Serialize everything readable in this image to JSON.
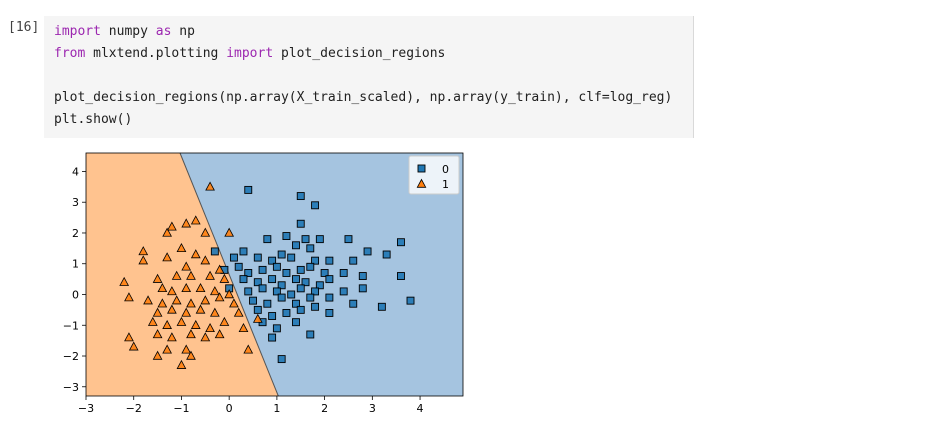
{
  "cell": {
    "prompt": "[16]",
    "code": {
      "line1": {
        "kw1": "import",
        "t1": " numpy ",
        "kw2": "as",
        "t2": " np"
      },
      "line2": {
        "kw1": "from",
        "t1": " mlxtend.plotting ",
        "kw2": "import",
        "t2": " plot_decision_regions"
      },
      "line4": "plot_decision_regions(np.array(X_train_scaled), np.array(y_train), clf=log_reg)",
      "line5": "plt.show()"
    }
  },
  "colors": {
    "region_0": "#a5c4e0",
    "region_1": "#ffc38f",
    "marker_0": "#1f77b4",
    "marker_1": "#ff7f0e",
    "keyword": "#9c27b0"
  },
  "chart_data": {
    "type": "scatter",
    "xlim": [
      -3,
      4.9
    ],
    "ylim": [
      -3.3,
      4.6
    ],
    "x_ticks": [
      -3,
      -2,
      -1,
      0,
      1,
      2,
      3,
      4
    ],
    "y_ticks": [
      -3,
      -2,
      -1,
      0,
      1,
      2,
      3,
      4
    ],
    "x_tick_labels": [
      "−3",
      "−2",
      "−1",
      "0",
      "1",
      "2",
      "3",
      "4"
    ],
    "y_tick_labels": [
      "−3",
      "−2",
      "−1",
      "0",
      "1",
      "2",
      "3",
      "4"
    ],
    "decision_boundary": [
      [
        -1.03,
        4.6
      ],
      [
        1.03,
        -3.3
      ]
    ],
    "legend_placement": "top-right",
    "grid": false,
    "series": [
      {
        "name": "0",
        "marker": "square",
        "points": [
          [
            0.4,
            3.4
          ],
          [
            1.5,
            3.2
          ],
          [
            1.8,
            2.9
          ],
          [
            1.5,
            2.3
          ],
          [
            0.8,
            1.8
          ],
          [
            1.2,
            1.9
          ],
          [
            1.4,
            1.6
          ],
          [
            1.6,
            1.8
          ],
          [
            1.9,
            1.8
          ],
          [
            1.7,
            1.5
          ],
          [
            2.5,
            1.8
          ],
          [
            3.6,
            1.7
          ],
          [
            2.9,
            1.4
          ],
          [
            -0.3,
            1.4
          ],
          [
            0.1,
            1.2
          ],
          [
            0.3,
            1.4
          ],
          [
            0.6,
            1.2
          ],
          [
            0.9,
            1.1
          ],
          [
            1.1,
            1.3
          ],
          [
            1.3,
            1.2
          ],
          [
            1.8,
            1.1
          ],
          [
            2.1,
            1.1
          ],
          [
            2.6,
            1.1
          ],
          [
            3.3,
            1.3
          ],
          [
            -0.1,
            0.8
          ],
          [
            0.2,
            0.9
          ],
          [
            0.4,
            0.7
          ],
          [
            0.7,
            0.8
          ],
          [
            1.0,
            0.9
          ],
          [
            1.2,
            0.7
          ],
          [
            1.5,
            0.8
          ],
          [
            1.7,
            0.9
          ],
          [
            2.0,
            0.7
          ],
          [
            2.4,
            0.7
          ],
          [
            2.8,
            0.6
          ],
          [
            3.6,
            0.6
          ],
          [
            0.3,
            0.5
          ],
          [
            0.6,
            0.4
          ],
          [
            0.9,
            0.5
          ],
          [
            1.1,
            0.3
          ],
          [
            1.4,
            0.5
          ],
          [
            1.6,
            0.4
          ],
          [
            1.9,
            0.3
          ],
          [
            2.1,
            0.5
          ],
          [
            0.0,
            0.2
          ],
          [
            0.4,
            0.1
          ],
          [
            0.7,
            0.2
          ],
          [
            1.0,
            0.1
          ],
          [
            1.3,
            0.0
          ],
          [
            1.5,
            0.2
          ],
          [
            1.8,
            0.1
          ],
          [
            2.4,
            0.1
          ],
          [
            2.8,
            0.2
          ],
          [
            3.8,
            -0.2
          ],
          [
            0.5,
            -0.2
          ],
          [
            0.8,
            -0.3
          ],
          [
            1.1,
            -0.1
          ],
          [
            1.4,
            -0.3
          ],
          [
            1.7,
            -0.1
          ],
          [
            2.1,
            -0.1
          ],
          [
            0.6,
            -0.5
          ],
          [
            0.9,
            -0.7
          ],
          [
            1.2,
            -0.6
          ],
          [
            1.5,
            -0.5
          ],
          [
            1.8,
            -0.4
          ],
          [
            2.1,
            -0.6
          ],
          [
            2.6,
            -0.3
          ],
          [
            3.2,
            -0.4
          ],
          [
            0.7,
            -0.9
          ],
          [
            1.0,
            -1.1
          ],
          [
            1.4,
            -0.9
          ],
          [
            1.7,
            -1.3
          ],
          [
            0.9,
            -1.4
          ],
          [
            1.1,
            -2.1
          ]
        ]
      },
      {
        "name": "1",
        "marker": "triangle",
        "points": [
          [
            -0.4,
            3.5
          ],
          [
            -0.9,
            2.3
          ],
          [
            -0.7,
            2.4
          ],
          [
            -1.3,
            2.0
          ],
          [
            -1.2,
            2.2
          ],
          [
            -0.5,
            2.0
          ],
          [
            0.0,
            2.0
          ],
          [
            -1.8,
            1.4
          ],
          [
            -1.0,
            1.5
          ],
          [
            -0.7,
            1.3
          ],
          [
            -1.3,
            1.2
          ],
          [
            -0.9,
            0.9
          ],
          [
            -0.5,
            1.1
          ],
          [
            -0.2,
            0.8
          ],
          [
            -1.8,
            1.1
          ],
          [
            -2.2,
            0.4
          ],
          [
            -1.5,
            0.5
          ],
          [
            -1.1,
            0.6
          ],
          [
            -0.8,
            0.6
          ],
          [
            -0.4,
            0.6
          ],
          [
            -0.1,
            0.5
          ],
          [
            -1.4,
            0.2
          ],
          [
            -1.2,
            0.1
          ],
          [
            -0.9,
            0.2
          ],
          [
            -0.6,
            0.2
          ],
          [
            -0.3,
            0.1
          ],
          [
            0.0,
            0.0
          ],
          [
            -2.1,
            -0.1
          ],
          [
            -1.7,
            -0.2
          ],
          [
            -1.4,
            -0.3
          ],
          [
            -1.1,
            -0.2
          ],
          [
            -0.8,
            -0.3
          ],
          [
            -0.5,
            -0.2
          ],
          [
            -0.2,
            -0.1
          ],
          [
            0.1,
            -0.3
          ],
          [
            -1.5,
            -0.6
          ],
          [
            -1.2,
            -0.5
          ],
          [
            -0.9,
            -0.6
          ],
          [
            -0.6,
            -0.5
          ],
          [
            -0.3,
            -0.6
          ],
          [
            0.2,
            -0.6
          ],
          [
            0.6,
            -0.8
          ],
          [
            -1.6,
            -0.9
          ],
          [
            -1.3,
            -1.0
          ],
          [
            -1.0,
            -0.9
          ],
          [
            -0.7,
            -1.0
          ],
          [
            -0.4,
            -1.1
          ],
          [
            -0.1,
            -0.9
          ],
          [
            0.3,
            -1.1
          ],
          [
            -1.5,
            -1.3
          ],
          [
            -1.2,
            -1.4
          ],
          [
            -0.8,
            -1.3
          ],
          [
            -0.5,
            -1.4
          ],
          [
            -0.2,
            -1.3
          ],
          [
            -2.0,
            -1.7
          ],
          [
            -1.3,
            -1.8
          ],
          [
            -0.9,
            -1.8
          ],
          [
            0.4,
            -1.8
          ],
          [
            -2.1,
            -1.4
          ],
          [
            -1.5,
            -2.0
          ],
          [
            -0.8,
            -2.0
          ],
          [
            -1.0,
            -2.3
          ]
        ]
      }
    ]
  }
}
